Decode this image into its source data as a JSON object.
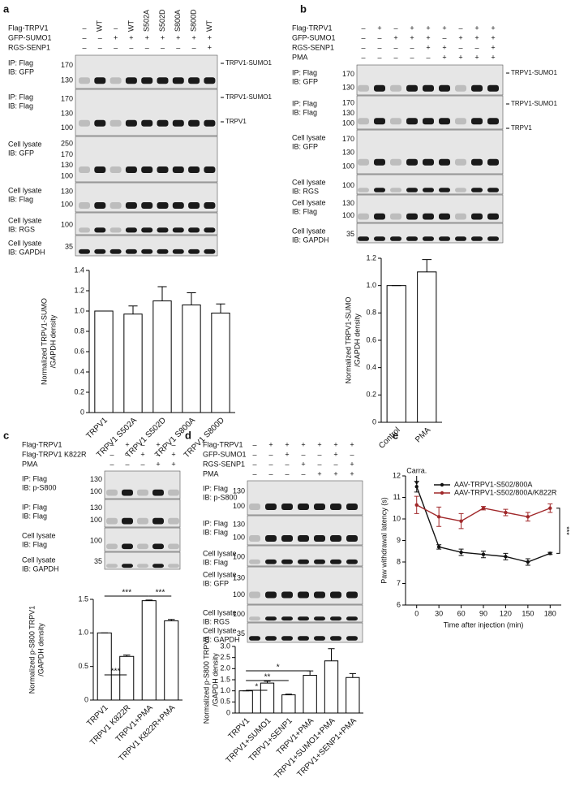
{
  "panel_letters": [
    "a",
    "b",
    "c",
    "d",
    "e"
  ],
  "blots": [
    {
      "conditions": [
        {
          "label": "Flag-TRPV1",
          "lanes": [
            "–",
            "WT",
            "–",
            "WT",
            "S502A",
            "S502D",
            "S800A",
            "S800D",
            "WT"
          ]
        },
        {
          "label": "GFP-SUMO1",
          "lanes": [
            "–",
            "–",
            "+",
            "+",
            "+",
            "+",
            "+",
            "+",
            "+"
          ]
        },
        {
          "label": "RGS-SENP1",
          "lanes": [
            "–",
            "–",
            "–",
            "–",
            "–",
            "–",
            "–",
            "–",
            "+"
          ]
        }
      ],
      "strips": [
        {
          "label": [
            "IP: Flag",
            "IB: GFP"
          ],
          "markers": [
            170,
            130
          ],
          "notes": [
            "TRPV1-SUMO1"
          ]
        },
        {
          "label": [
            "IP: Flag",
            "IB: Flag"
          ],
          "markers": [
            170,
            130,
            100
          ],
          "notes": [
            "TRPV1-SUMO1",
            "TRPV1"
          ]
        },
        {
          "label": [
            "Cell lysate",
            "IB: GFP"
          ],
          "markers": [
            250,
            170,
            130,
            100
          ],
          "notes": []
        },
        {
          "label": [
            "Cell lysate",
            "IB: Flag"
          ],
          "markers": [
            130,
            100
          ],
          "notes": []
        },
        {
          "label": [
            "Cell lysate",
            "IB: RGS"
          ],
          "markers": [
            100
          ],
          "notes": []
        },
        {
          "label": [
            "Cell lysate",
            "IB: GAPDH"
          ],
          "markers": [
            35
          ],
          "notes": []
        }
      ]
    },
    {
      "conditions": [
        {
          "label": "Flag-TRPV1",
          "lanes": [
            "–",
            "+",
            "–",
            "+",
            "+",
            "+",
            "–",
            "+",
            "+"
          ]
        },
        {
          "label": "GFP-SUMO1",
          "lanes": [
            "–",
            "–",
            "+",
            "+",
            "+",
            "–",
            "+",
            "+",
            "+"
          ]
        },
        {
          "label": "RGS-SENP1",
          "lanes": [
            "–",
            "–",
            "–",
            "–",
            "+",
            "+",
            "–",
            "–",
            "+"
          ]
        },
        {
          "label": "PMA",
          "lanes": [
            "–",
            "–",
            "–",
            "–",
            "–",
            "+",
            "+",
            "+",
            "+"
          ]
        }
      ],
      "strips": [
        {
          "label": [
            "IP: Flag",
            "IB: GFP"
          ],
          "markers": [
            170,
            130
          ],
          "notes": [
            "TRPV1-SUMO1"
          ]
        },
        {
          "label": [
            "IP: Flag",
            "IB: Flag"
          ],
          "markers": [
            170,
            130,
            100
          ],
          "notes": [
            "TRPV1-SUMO1",
            "TRPV1"
          ]
        },
        {
          "label": [
            "Cell lysate",
            "IB: GFP"
          ],
          "markers": [
            170,
            130,
            100
          ],
          "notes": []
        },
        {
          "label": [
            "Cell lysate",
            "IB: RGS"
          ],
          "markers": [
            100
          ],
          "notes": []
        },
        {
          "label": [
            "Cell lysate",
            "IB: Flag"
          ],
          "markers": [
            130,
            100
          ],
          "notes": []
        },
        {
          "label": [
            "Cell lysate",
            "IB: GAPDH"
          ],
          "markers": [
            35
          ],
          "notes": []
        }
      ]
    },
    {
      "conditions": [
        {
          "label": "Flag-TRPV1",
          "lanes": [
            "–",
            "+",
            "–",
            "+",
            "–"
          ]
        },
        {
          "label": "Flag-TRPV1 K822R",
          "lanes": [
            "–",
            "–",
            "+",
            "–",
            "+"
          ]
        },
        {
          "label": "PMA",
          "lanes": [
            "–",
            "–",
            "–",
            "+",
            "+"
          ]
        }
      ],
      "strips": [
        {
          "label": [
            "IP: Flag",
            "IB: p-S800"
          ],
          "markers": [
            130,
            100
          ],
          "notes": []
        },
        {
          "label": [
            "IP: Flag",
            "IB: Flag"
          ],
          "markers": [
            130,
            100
          ],
          "notes": []
        },
        {
          "label": [
            "Cell lysate",
            "IB: Flag"
          ],
          "markers": [
            100
          ],
          "notes": []
        },
        {
          "label": [
            "Cell lysate",
            "IB: GAPDH"
          ],
          "markers": [
            35
          ],
          "notes": []
        }
      ]
    },
    {
      "conditions": [
        {
          "label": "Flag-TRPV1",
          "lanes": [
            "–",
            "+",
            "+",
            "+",
            "+",
            "+",
            "+"
          ]
        },
        {
          "label": "GFP-SUMO1",
          "lanes": [
            "–",
            "–",
            "+",
            "–",
            "–",
            "+",
            "–"
          ]
        },
        {
          "label": "RGS-SENP1",
          "lanes": [
            "–",
            "–",
            "–",
            "+",
            "–",
            "–",
            "+"
          ]
        },
        {
          "label": "PMA",
          "lanes": [
            "–",
            "–",
            "–",
            "–",
            "+",
            "+",
            "+"
          ]
        }
      ],
      "strips": [
        {
          "label": [
            "IP: Flag",
            "IB: p-S800"
          ],
          "markers": [
            130,
            100
          ],
          "notes": []
        },
        {
          "label": [
            "IP: Flag",
            "IB: Flag"
          ],
          "markers": [
            130,
            100
          ],
          "notes": []
        },
        {
          "label": [
            "Cell lysate",
            "IB: Flag"
          ],
          "markers": [
            100
          ],
          "notes": []
        },
        {
          "label": [
            "Cell lysate",
            "IB: GFP"
          ],
          "markers": [
            130,
            100
          ],
          "notes": []
        },
        {
          "label": [
            "Cell lysate",
            "IB: RGS"
          ],
          "markers": [
            100
          ],
          "notes": []
        },
        {
          "label": [
            "Cell lysate",
            "IB: GAPDH"
          ],
          "markers": [
            35
          ],
          "notes": []
        }
      ]
    }
  ],
  "chart_data": [
    {
      "type": "bar",
      "ylabel": [
        "Normalized TRPV1-SUMO",
        "/GAPDH density"
      ],
      "categories": [
        "TRPV1",
        "TRPV1 S502A",
        "TRPV1 S502D",
        "TRPV1 S800A",
        "TRPV1 S800D"
      ],
      "values": [
        1.0,
        0.97,
        1.1,
        1.06,
        0.98
      ],
      "errors": [
        0,
        0.08,
        0.14,
        0.12,
        0.09
      ],
      "color": "#ffffff",
      "ylim": [
        0,
        1.4
      ],
      "yticks": [
        0,
        0.2,
        0.4,
        0.6,
        0.8,
        {
          "value": 1,
          "label": "1.0"
        },
        1.2,
        1.4
      ],
      "annotations": []
    },
    {
      "type": "bar",
      "ylabel": [
        "Normalized TRPV1-SUMO",
        "/GAPDH density"
      ],
      "categories": [
        "Control",
        "PMA"
      ],
      "values": [
        1.0,
        1.1
      ],
      "errors": [
        0,
        0.09
      ],
      "color": "#ffffff",
      "ylim": [
        0,
        1.2
      ],
      "yticks": [
        0,
        0.2,
        0.4,
        0.6,
        0.8,
        {
          "value": 1,
          "label": "1.0"
        },
        1.2
      ],
      "annotations": []
    },
    {
      "type": "bar",
      "ylabel": [
        "Normalized p-S800 TRPV1",
        "/GAPDH density"
      ],
      "categories": [
        "TRPV1",
        "TRPV1 K822R",
        "TRPV1+PMA",
        "TRPV1 K822R+PMA"
      ],
      "values": [
        1.0,
        0.65,
        1.48,
        1.18
      ],
      "errors": [
        0,
        0.02,
        0.01,
        0.02
      ],
      "color": "#ffffff",
      "ylim": [
        0,
        1.5
      ],
      "yticks": [
        0,
        0.5,
        {
          "value": 1,
          "label": "1.0"
        },
        1.5
      ],
      "annotations": [
        "***",
        "***",
        "***"
      ]
    },
    {
      "type": "bar",
      "ylabel": [
        "Normalized p-S800 TRPV1",
        "/GAPDH density"
      ],
      "categories": [
        "TRPV1",
        "TRPV1+SUMO1",
        "TRPV1+SENP1",
        "TRPV1+PMA",
        "TRPV1+SUMO1+PMA",
        "TRPV1+SENP1+PMA"
      ],
      "values": [
        1.0,
        1.35,
        0.82,
        1.7,
        2.35,
        1.6
      ],
      "errors": [
        0,
        0.08,
        0.03,
        0.2,
        0.55,
        0.18
      ],
      "color": "#ffffff",
      "ylim": [
        0,
        3
      ],
      "yticks": [
        0,
        0.5,
        {
          "value": 1,
          "label": "1.0"
        },
        1.5,
        {
          "value": 2,
          "label": "2.0"
        },
        2.5,
        {
          "value": 3,
          "label": "3.0"
        }
      ],
      "annotations": [
        "*",
        "**",
        "*"
      ]
    },
    {
      "type": "line",
      "xlabel": "Time after injection (min)",
      "ylabel": "Paw withdrawal latency (s)",
      "x": [
        0,
        30,
        60,
        90,
        120,
        150,
        180
      ],
      "series": [
        {
          "name": "AAV-TRPV1-S502/800A",
          "color": "#111111",
          "values": [
            11.5,
            8.7,
            8.45,
            8.35,
            8.25,
            8.0,
            8.4
          ],
          "errors": [
            0.25,
            0.1,
            0.15,
            0.15,
            0.15,
            0.15,
            0.05
          ]
        },
        {
          "name": "AAV-TRPV1-S502/800A/K822R",
          "color": "#a0282a",
          "values": [
            10.65,
            10.1,
            9.9,
            10.5,
            10.3,
            10.1,
            10.5
          ],
          "errors": [
            0.4,
            0.45,
            0.35,
            0.08,
            0.15,
            0.2,
            0.2
          ]
        }
      ],
      "xlim": [
        -15,
        195
      ],
      "xticks": [
        0,
        30,
        60,
        90,
        120,
        150,
        180
      ],
      "ylim": [
        6,
        12
      ],
      "yticks": [
        6,
        7,
        8,
        9,
        10,
        11,
        12
      ],
      "annotations": [
        "Carra.",
        "***"
      ]
    }
  ]
}
